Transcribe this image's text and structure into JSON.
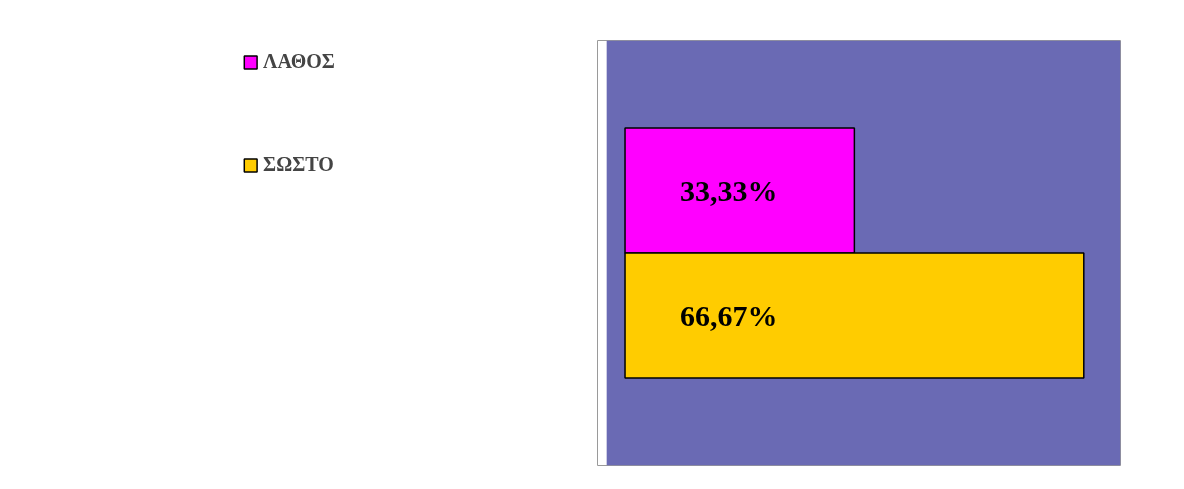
{
  "chart_data": {
    "type": "bar",
    "orientation": "horizontal",
    "categories": [
      null
    ],
    "series": [
      {
        "name": "ΛΑΘΟΣ",
        "color": "#ff00ff",
        "values": [
          33.33
        ],
        "value_labels": [
          "33,33%"
        ]
      },
      {
        "name": "ΣΩΣΤΟ",
        "color": "#ffcc00",
        "values": [
          66.67
        ],
        "value_labels": [
          "66,67%"
        ]
      }
    ],
    "legend": "left"
  }
}
